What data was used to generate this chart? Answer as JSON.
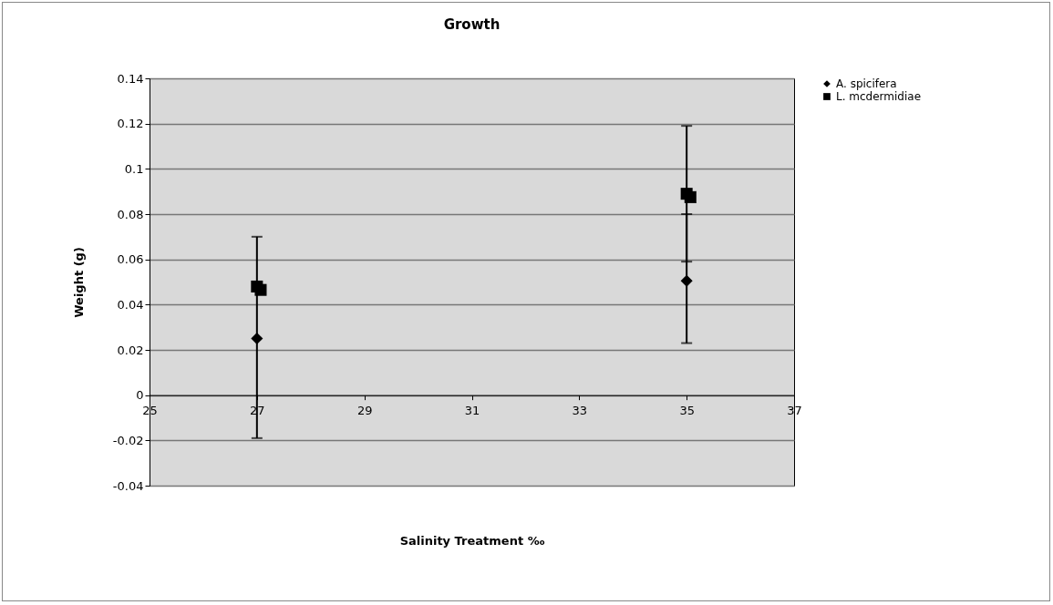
{
  "chart_data": {
    "type": "scatter",
    "title": "Growth",
    "xlabel": "Salinity Treatment ‰",
    "ylabel": "Weight (g)",
    "xlim": [
      25,
      37
    ],
    "xticks": [
      25,
      27,
      29,
      31,
      33,
      35,
      37
    ],
    "ylim": [
      -0.04,
      0.14
    ],
    "yticks": [
      -0.04,
      -0.02,
      0,
      0.02,
      0.04,
      0.06,
      0.08,
      0.1,
      0.12,
      0.14
    ],
    "grid": "y",
    "legend": "right",
    "series": [
      {
        "name": "A. spicifera",
        "color": "#000000",
        "marker": "diamond",
        "x": [
          27,
          35
        ],
        "values": [
          0.025,
          0.0505
        ],
        "errors": [
          [
            -0.019,
            0.07
          ],
          [
            0.023,
            0.08
          ]
        ]
      },
      {
        "name": "L. mcdermidiae",
        "color": "#000000",
        "marker": "square",
        "x": [
          27,
          27.07,
          35,
          35.07
        ],
        "values": [
          0.048,
          0.0465,
          0.089,
          0.0875
        ],
        "errors": [
          null,
          null,
          [
            0.059,
            0.119
          ],
          null
        ]
      }
    ]
  }
}
